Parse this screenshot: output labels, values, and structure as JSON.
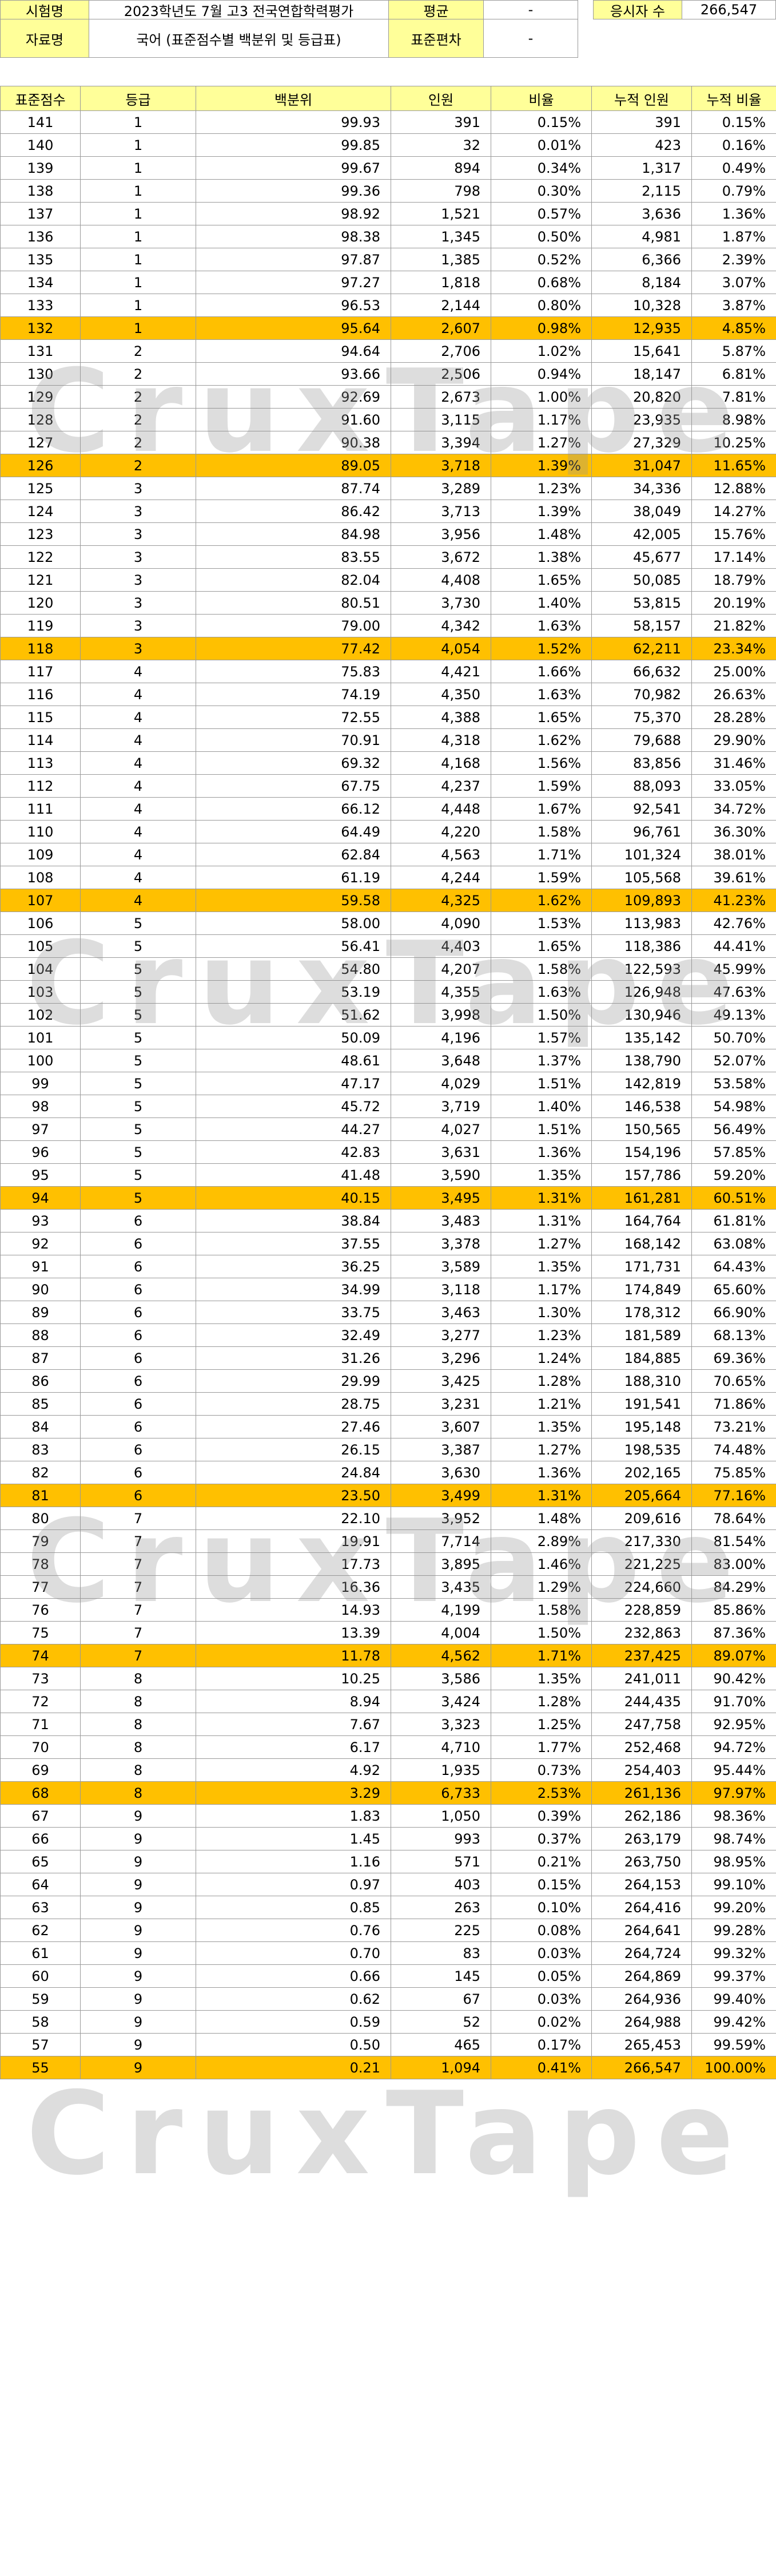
{
  "info": {
    "exam_label": "시험명",
    "exam_value": "2023학년도 7월 고3 전국연합학력평가",
    "avg_label": "평균",
    "avg_value": "-",
    "takers_label": "응시자 수",
    "takers_value": "266,547",
    "data_label": "자료명",
    "data_value": "국어 (표준점수별 백분위 및 등급표)",
    "sd_label": "표준편차",
    "sd_value": "-"
  },
  "watermark": "CruxTape",
  "colors": {
    "header_bg": "#ffff99",
    "highlight_bg": "#ffc000",
    "border": "#9a9a9a"
  },
  "columns": [
    "표준점수",
    "등급",
    "백분위",
    "인원",
    "비율",
    "누적 인원",
    "누적 비율"
  ],
  "rows": [
    [
      "141",
      "1",
      "99.93",
      "391",
      "0.15%",
      "391",
      "0.15%"
    ],
    [
      "140",
      "1",
      "99.85",
      "32",
      "0.01%",
      "423",
      "0.16%"
    ],
    [
      "139",
      "1",
      "99.67",
      "894",
      "0.34%",
      "1,317",
      "0.49%"
    ],
    [
      "138",
      "1",
      "99.36",
      "798",
      "0.30%",
      "2,115",
      "0.79%"
    ],
    [
      "137",
      "1",
      "98.92",
      "1,521",
      "0.57%",
      "3,636",
      "1.36%"
    ],
    [
      "136",
      "1",
      "98.38",
      "1,345",
      "0.50%",
      "4,981",
      "1.87%"
    ],
    [
      "135",
      "1",
      "97.87",
      "1,385",
      "0.52%",
      "6,366",
      "2.39%"
    ],
    [
      "134",
      "1",
      "97.27",
      "1,818",
      "0.68%",
      "8,184",
      "3.07%"
    ],
    [
      "133",
      "1",
      "96.53",
      "2,144",
      "0.80%",
      "10,328",
      "3.87%"
    ],
    [
      "132",
      "1",
      "95.64",
      "2,607",
      "0.98%",
      "12,935",
      "4.85%"
    ],
    [
      "131",
      "2",
      "94.64",
      "2,706",
      "1.02%",
      "15,641",
      "5.87%"
    ],
    [
      "130",
      "2",
      "93.66",
      "2,506",
      "0.94%",
      "18,147",
      "6.81%"
    ],
    [
      "129",
      "2",
      "92.69",
      "2,673",
      "1.00%",
      "20,820",
      "7.81%"
    ],
    [
      "128",
      "2",
      "91.60",
      "3,115",
      "1.17%",
      "23,935",
      "8.98%"
    ],
    [
      "127",
      "2",
      "90.38",
      "3,394",
      "1.27%",
      "27,329",
      "10.25%"
    ],
    [
      "126",
      "2",
      "89.05",
      "3,718",
      "1.39%",
      "31,047",
      "11.65%"
    ],
    [
      "125",
      "3",
      "87.74",
      "3,289",
      "1.23%",
      "34,336",
      "12.88%"
    ],
    [
      "124",
      "3",
      "86.42",
      "3,713",
      "1.39%",
      "38,049",
      "14.27%"
    ],
    [
      "123",
      "3",
      "84.98",
      "3,956",
      "1.48%",
      "42,005",
      "15.76%"
    ],
    [
      "122",
      "3",
      "83.55",
      "3,672",
      "1.38%",
      "45,677",
      "17.14%"
    ],
    [
      "121",
      "3",
      "82.04",
      "4,408",
      "1.65%",
      "50,085",
      "18.79%"
    ],
    [
      "120",
      "3",
      "80.51",
      "3,730",
      "1.40%",
      "53,815",
      "20.19%"
    ],
    [
      "119",
      "3",
      "79.00",
      "4,342",
      "1.63%",
      "58,157",
      "21.82%"
    ],
    [
      "118",
      "3",
      "77.42",
      "4,054",
      "1.52%",
      "62,211",
      "23.34%"
    ],
    [
      "117",
      "4",
      "75.83",
      "4,421",
      "1.66%",
      "66,632",
      "25.00%"
    ],
    [
      "116",
      "4",
      "74.19",
      "4,350",
      "1.63%",
      "70,982",
      "26.63%"
    ],
    [
      "115",
      "4",
      "72.55",
      "4,388",
      "1.65%",
      "75,370",
      "28.28%"
    ],
    [
      "114",
      "4",
      "70.91",
      "4,318",
      "1.62%",
      "79,688",
      "29.90%"
    ],
    [
      "113",
      "4",
      "69.32",
      "4,168",
      "1.56%",
      "83,856",
      "31.46%"
    ],
    [
      "112",
      "4",
      "67.75",
      "4,237",
      "1.59%",
      "88,093",
      "33.05%"
    ],
    [
      "111",
      "4",
      "66.12",
      "4,448",
      "1.67%",
      "92,541",
      "34.72%"
    ],
    [
      "110",
      "4",
      "64.49",
      "4,220",
      "1.58%",
      "96,761",
      "36.30%"
    ],
    [
      "109",
      "4",
      "62.84",
      "4,563",
      "1.71%",
      "101,324",
      "38.01%"
    ],
    [
      "108",
      "4",
      "61.19",
      "4,244",
      "1.59%",
      "105,568",
      "39.61%"
    ],
    [
      "107",
      "4",
      "59.58",
      "4,325",
      "1.62%",
      "109,893",
      "41.23%"
    ],
    [
      "106",
      "5",
      "58.00",
      "4,090",
      "1.53%",
      "113,983",
      "42.76%"
    ],
    [
      "105",
      "5",
      "56.41",
      "4,403",
      "1.65%",
      "118,386",
      "44.41%"
    ],
    [
      "104",
      "5",
      "54.80",
      "4,207",
      "1.58%",
      "122,593",
      "45.99%"
    ],
    [
      "103",
      "5",
      "53.19",
      "4,355",
      "1.63%",
      "126,948",
      "47.63%"
    ],
    [
      "102",
      "5",
      "51.62",
      "3,998",
      "1.50%",
      "130,946",
      "49.13%"
    ],
    [
      "101",
      "5",
      "50.09",
      "4,196",
      "1.57%",
      "135,142",
      "50.70%"
    ],
    [
      "100",
      "5",
      "48.61",
      "3,648",
      "1.37%",
      "138,790",
      "52.07%"
    ],
    [
      "99",
      "5",
      "47.17",
      "4,029",
      "1.51%",
      "142,819",
      "53.58%"
    ],
    [
      "98",
      "5",
      "45.72",
      "3,719",
      "1.40%",
      "146,538",
      "54.98%"
    ],
    [
      "97",
      "5",
      "44.27",
      "4,027",
      "1.51%",
      "150,565",
      "56.49%"
    ],
    [
      "96",
      "5",
      "42.83",
      "3,631",
      "1.36%",
      "154,196",
      "57.85%"
    ],
    [
      "95",
      "5",
      "41.48",
      "3,590",
      "1.35%",
      "157,786",
      "59.20%"
    ],
    [
      "94",
      "5",
      "40.15",
      "3,495",
      "1.31%",
      "161,281",
      "60.51%"
    ],
    [
      "93",
      "6",
      "38.84",
      "3,483",
      "1.31%",
      "164,764",
      "61.81%"
    ],
    [
      "92",
      "6",
      "37.55",
      "3,378",
      "1.27%",
      "168,142",
      "63.08%"
    ],
    [
      "91",
      "6",
      "36.25",
      "3,589",
      "1.35%",
      "171,731",
      "64.43%"
    ],
    [
      "90",
      "6",
      "34.99",
      "3,118",
      "1.17%",
      "174,849",
      "65.60%"
    ],
    [
      "89",
      "6",
      "33.75",
      "3,463",
      "1.30%",
      "178,312",
      "66.90%"
    ],
    [
      "88",
      "6",
      "32.49",
      "3,277",
      "1.23%",
      "181,589",
      "68.13%"
    ],
    [
      "87",
      "6",
      "31.26",
      "3,296",
      "1.24%",
      "184,885",
      "69.36%"
    ],
    [
      "86",
      "6",
      "29.99",
      "3,425",
      "1.28%",
      "188,310",
      "70.65%"
    ],
    [
      "85",
      "6",
      "28.75",
      "3,231",
      "1.21%",
      "191,541",
      "71.86%"
    ],
    [
      "84",
      "6",
      "27.46",
      "3,607",
      "1.35%",
      "195,148",
      "73.21%"
    ],
    [
      "83",
      "6",
      "26.15",
      "3,387",
      "1.27%",
      "198,535",
      "74.48%"
    ],
    [
      "82",
      "6",
      "24.84",
      "3,630",
      "1.36%",
      "202,165",
      "75.85%"
    ],
    [
      "81",
      "6",
      "23.50",
      "3,499",
      "1.31%",
      "205,664",
      "77.16%"
    ],
    [
      "80",
      "7",
      "22.10",
      "3,952",
      "1.48%",
      "209,616",
      "78.64%"
    ],
    [
      "79",
      "7",
      "19.91",
      "7,714",
      "2.89%",
      "217,330",
      "81.54%"
    ],
    [
      "78",
      "7",
      "17.73",
      "3,895",
      "1.46%",
      "221,225",
      "83.00%"
    ],
    [
      "77",
      "7",
      "16.36",
      "3,435",
      "1.29%",
      "224,660",
      "84.29%"
    ],
    [
      "76",
      "7",
      "14.93",
      "4,199",
      "1.58%",
      "228,859",
      "85.86%"
    ],
    [
      "75",
      "7",
      "13.39",
      "4,004",
      "1.50%",
      "232,863",
      "87.36%"
    ],
    [
      "74",
      "7",
      "11.78",
      "4,562",
      "1.71%",
      "237,425",
      "89.07%"
    ],
    [
      "73",
      "8",
      "10.25",
      "3,586",
      "1.35%",
      "241,011",
      "90.42%"
    ],
    [
      "72",
      "8",
      "8.94",
      "3,424",
      "1.28%",
      "244,435",
      "91.70%"
    ],
    [
      "71",
      "8",
      "7.67",
      "3,323",
      "1.25%",
      "247,758",
      "92.95%"
    ],
    [
      "70",
      "8",
      "6.17",
      "4,710",
      "1.77%",
      "252,468",
      "94.72%"
    ],
    [
      "69",
      "8",
      "4.92",
      "1,935",
      "0.73%",
      "254,403",
      "95.44%"
    ],
    [
      "68",
      "8",
      "3.29",
      "6,733",
      "2.53%",
      "261,136",
      "97.97%"
    ],
    [
      "67",
      "9",
      "1.83",
      "1,050",
      "0.39%",
      "262,186",
      "98.36%"
    ],
    [
      "66",
      "9",
      "1.45",
      "993",
      "0.37%",
      "263,179",
      "98.74%"
    ],
    [
      "65",
      "9",
      "1.16",
      "571",
      "0.21%",
      "263,750",
      "98.95%"
    ],
    [
      "64",
      "9",
      "0.97",
      "403",
      "0.15%",
      "264,153",
      "99.10%"
    ],
    [
      "63",
      "9",
      "0.85",
      "263",
      "0.10%",
      "264,416",
      "99.20%"
    ],
    [
      "62",
      "9",
      "0.76",
      "225",
      "0.08%",
      "264,641",
      "99.28%"
    ],
    [
      "61",
      "9",
      "0.70",
      "83",
      "0.03%",
      "264,724",
      "99.32%"
    ],
    [
      "60",
      "9",
      "0.66",
      "145",
      "0.05%",
      "264,869",
      "99.37%"
    ],
    [
      "59",
      "9",
      "0.62",
      "67",
      "0.03%",
      "264,936",
      "99.40%"
    ],
    [
      "58",
      "9",
      "0.59",
      "52",
      "0.02%",
      "264,988",
      "99.42%"
    ],
    [
      "57",
      "9",
      "0.50",
      "465",
      "0.17%",
      "265,453",
      "99.59%"
    ],
    [
      "55",
      "9",
      "0.21",
      "1,094",
      "0.41%",
      "266,547",
      "100.00%"
    ]
  ],
  "highlight_rows": [
    "132",
    "126",
    "118",
    "107",
    "94",
    "81",
    "74",
    "68",
    "55"
  ]
}
